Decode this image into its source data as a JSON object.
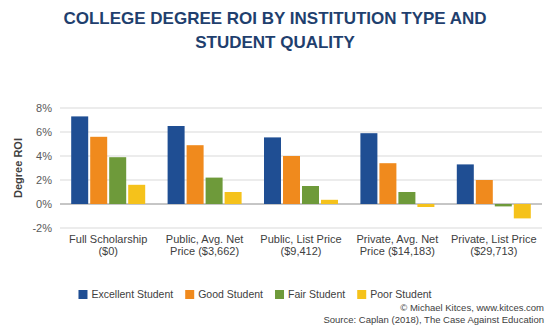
{
  "chart_data": {
    "type": "bar",
    "title": "COLLEGE DEGREE ROI BY INSTITUTION TYPE AND STUDENT QUALITY",
    "ylabel": "Degree ROI",
    "categories": [
      "Full Scholarship ($0)",
      "Public, Avg. Net Price ($3,662)",
      "Public, List Price ($9,412)",
      "Private, Avg. Net Price ($14,183)",
      "Private, List Price ($29,713)"
    ],
    "series": [
      {
        "name": "Excellent Student",
        "color": "#1f4e93",
        "values": [
          7.3,
          6.5,
          5.55,
          5.9,
          3.3
        ]
      },
      {
        "name": "Good Student",
        "color": "#f08a1d",
        "values": [
          5.6,
          4.9,
          4.0,
          3.4,
          2.0
        ]
      },
      {
        "name": "Fair Student",
        "color": "#6e9a3a",
        "values": [
          3.9,
          2.2,
          1.5,
          1.0,
          -0.2
        ]
      },
      {
        "name": "Poor Student",
        "color": "#f5c21b",
        "values": [
          1.6,
          1.0,
          0.35,
          -0.25,
          -1.2
        ]
      }
    ],
    "ylim": [
      -2,
      8
    ],
    "yticks": [
      {
        "value": -2,
        "label": "-2%"
      },
      {
        "value": 0,
        "label": "0%"
      },
      {
        "value": 2,
        "label": "2%"
      },
      {
        "value": 4,
        "label": "4%"
      },
      {
        "value": 6,
        "label": "6%"
      },
      {
        "value": 8,
        "label": "8%"
      }
    ],
    "grid": true,
    "legend": "bottom",
    "annotations": [
      "© Michael Kitces, www.kitces.com",
      "Source: Caplan (2018), The Case Against Education"
    ]
  }
}
